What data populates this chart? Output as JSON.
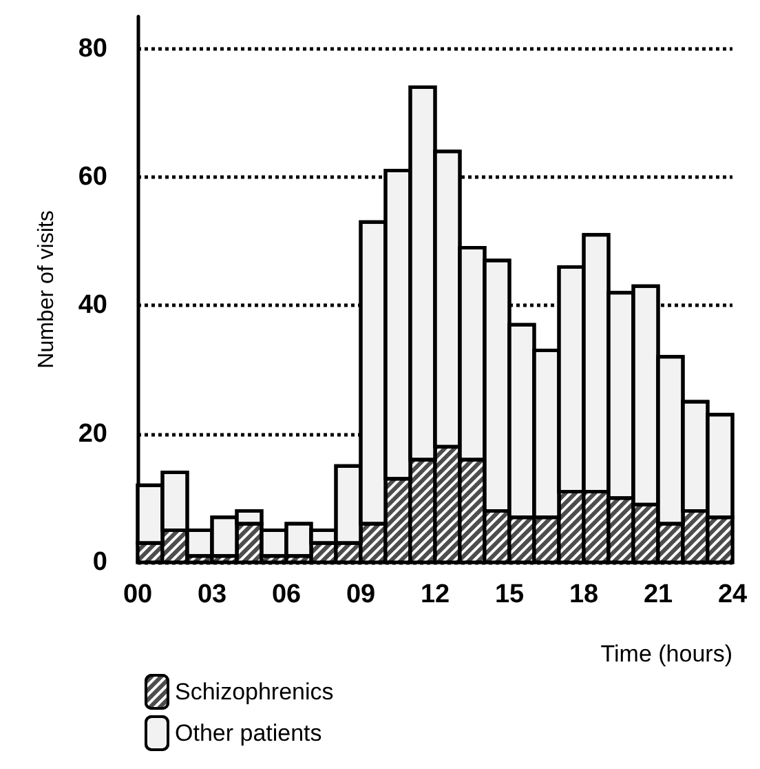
{
  "chart_data": {
    "type": "bar",
    "stacked": true,
    "xlabel": "Time (hours)",
    "ylabel": "Number of visits",
    "x": [
      0.5,
      1.5,
      2.5,
      3.5,
      4.5,
      5.5,
      6.5,
      7.5,
      8.5,
      9.5,
      10.5,
      11.5,
      12.5,
      13.5,
      14.5,
      15.5,
      16.5,
      17.5,
      18.5,
      19.5,
      20.5,
      21.5,
      22.5,
      23.5
    ],
    "xlim": [
      0,
      24
    ],
    "xticks": [
      {
        "value": 0,
        "label": "00"
      },
      {
        "value": 3,
        "label": "03"
      },
      {
        "value": 6,
        "label": "06"
      },
      {
        "value": 9,
        "label": "09"
      },
      {
        "value": 12,
        "label": "12"
      },
      {
        "value": 15,
        "label": "15"
      },
      {
        "value": 18,
        "label": "18"
      },
      {
        "value": 21,
        "label": "21"
      },
      {
        "value": 24,
        "label": "24"
      }
    ],
    "ylim": [
      0,
      85
    ],
    "yticks": [
      0,
      20,
      40,
      60,
      80
    ],
    "grid": "y",
    "legend": "bottom left",
    "series": [
      {
        "name": "Schizophrenics",
        "color": "#4d4d4d",
        "values": [
          3,
          5,
          1,
          1,
          6,
          1,
          1,
          3,
          3,
          6,
          13,
          16,
          18,
          16,
          8,
          7,
          7,
          11,
          11,
          10,
          9,
          6,
          8,
          7
        ]
      },
      {
        "name": "Other patients",
        "color": "#f2f2f2",
        "values": [
          9,
          9,
          4,
          6,
          2,
          4,
          5,
          2,
          12,
          47,
          48,
          58,
          46,
          33,
          39,
          30,
          26,
          35,
          40,
          32,
          34,
          26,
          17,
          16
        ]
      }
    ]
  }
}
